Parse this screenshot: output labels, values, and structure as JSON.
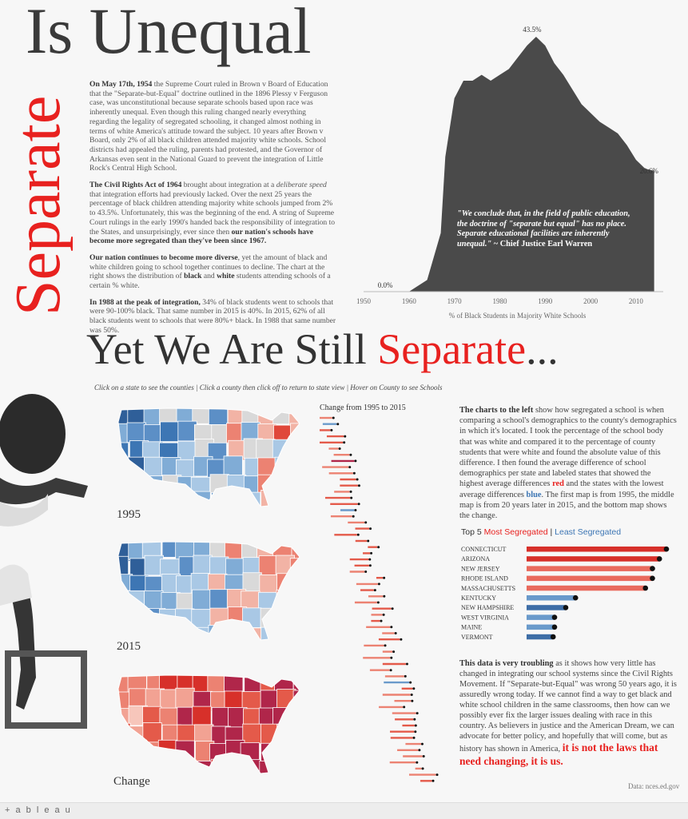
{
  "title_top": "Is Unequal",
  "title_vertical": "Separate",
  "intro": {
    "p1_lead": "On May 17th, 1954",
    "p1_body": " the Supreme Court ruled in Brown v Board of Education that the \"Separate-but-Equal\" doctrine outlined in the 1896 Plessy v Ferguson case, was unconstitutional because separate schools based upon race was inherently unequal.  Even though this ruling changed nearly everything regarding the legality of segregated schooling, it changed almost nothing in terms of white America's attitude toward the subject. 10 years after Brown v Board, only 2% of all black children attended majority white schools. School districts had appealed the ruling, parents had protested, and the Governor of Arkansas even sent in the National Guard to prevent the integration of Little Rock's Central High School.",
    "p2_lead": "The Civil Rights Act of 1964",
    "p2_mid1": " brought about integration at a ",
    "p2_italic": "deliberate speed",
    "p2_mid2": " that integration efforts had previously lacked. Over the next 25 years the percentage of black children attending majority white schools jumped from 2% to 43.5%. Unfortunately, this was the beginning of the end. A string of Supreme Court rulings in the early 1990's handed back the responsibility of integration to the States, and unsurprisingly, ever since then ",
    "p2_bold_end": "our nation's schools have become more segregated than they've been since 1967.",
    "p3_lead": "Our nation continues to become more diverse",
    "p3_mid1": ", yet the amount of black and white children going to school together continues to decline. The chart at the right shows the distribution of ",
    "p3_black": "black",
    "p3_and": " and ",
    "p3_white": "white",
    "p3_end": " students attending schools of a certain % white.",
    "p4_lead": "In 1988 at the peak of integration,",
    "p4_body": " 34% of black students went to schools that were 90-100% black. That same number in 2015 is 40%. In 2015, 62% of all black students went to schools that were 80%+ black. In 1988 that same number was 50%."
  },
  "quote": {
    "text": "\"We conclude that, in the field of public education, the doctrine of \"separate but equal\" has no place. Separate educational facilities are inherently unequal.\"",
    "attribution": " ~ Chief Justice Earl Warren"
  },
  "chart_data": [
    {
      "type": "area",
      "x": [
        1954,
        1960,
        1964,
        1967,
        1968,
        1970,
        1972,
        1974,
        1976,
        1978,
        1980,
        1982,
        1984,
        1986,
        1988,
        1990,
        1992,
        1994,
        1996,
        1998,
        2000,
        2002,
        2004,
        2006,
        2008,
        2010,
        2012,
        2014
      ],
      "values": [
        0,
        0,
        2,
        10,
        23,
        33,
        36,
        36,
        37,
        36,
        37,
        38,
        40,
        42,
        43.5,
        42,
        39,
        37,
        34.5,
        32,
        30.5,
        29,
        28,
        27,
        25,
        22.5,
        21,
        20.6
      ],
      "xticks": [
        1950,
        1960,
        1970,
        1980,
        1990,
        2000,
        2010
      ],
      "xlabel": "% of Black Students in Majority White Schools",
      "data_labels": {
        "start": "0.0%",
        "peak": "43.5%",
        "end": "20.6%"
      },
      "xlim": [
        1950,
        2016
      ],
      "ylim": [
        0,
        45
      ],
      "color": "#4a4a4a"
    },
    {
      "type": "bar",
      "title": "Top 5 Most Segregated | Least Segregated",
      "categories": [
        "CONNECTICUT",
        "ARIZONA",
        "NEW JERSEY",
        "RHODE ISLAND",
        "MASSACHUSETTS",
        "KENTUCKY",
        "NEW HAMPSHIRE",
        "WEST VIRGINIA",
        "MAINE",
        "VERMONT"
      ],
      "values": [
        1.0,
        0.95,
        0.9,
        0.9,
        0.85,
        0.35,
        0.28,
        0.2,
        0.2,
        0.19
      ],
      "colors": [
        "#d7302a",
        "#d7302a",
        "#e96a5d",
        "#e96a5d",
        "#e96a5d",
        "#6a9acb",
        "#3d6da6",
        "#6a9acb",
        "#6a9acb",
        "#3d6da6"
      ]
    },
    {
      "type": "scatter",
      "title": "Change from 1995 to 2015",
      "rows": 60
    }
  ],
  "headline": {
    "main": "Yet We Are Still ",
    "red": "Separate",
    "end": "..."
  },
  "instructions": "Click on a state to see the counties | Click a county then click off to return to state view | Hover on County to see Schools",
  "map_labels": {
    "m1": "1995",
    "m2": "2015",
    "m3": "Change"
  },
  "change_title": "Change from 1995 to 2015",
  "explain": {
    "lead": "The charts to the left",
    "body1": " show how segregated a school is when comparing a school's demographics to the county's demographics in which it's located. I took the percentage of the school body that was white and compared it to the percentage of county students that were white and found the absolute value of this difference. I then found the average difference of school demographics per state and labeled states that showed the highest average differences ",
    "red": "red",
    "body2": " and the states with the lowest average differences ",
    "blue": "blue",
    "body3": ". The first map is from 1995, the middle map is from 20 years later in 2015, and the bottom map shows the change."
  },
  "top5": {
    "prefix": "Top 5 ",
    "most": "Most Segregated",
    "sep": " | ",
    "least": "Least Segregated"
  },
  "conclusion": {
    "lead": "This data is very troubling",
    "body": " as it shows how very little has changed in integrating our school systems since the Civil Rights Movement. If \"Separate-but-Equal\" was wrong 50 years ago, it is assuredly wrong today. If we cannot find a way to get black and white school children in the same classrooms, then how can we possibly ever fix the larger issues dealing with race in this country. As believers in justice and the American Dream, we can advocate for better policy, and hopefully that will come, but as history has shown in America, ",
    "emphasis": "it is not the laws that need changing, it is us."
  },
  "source": "Data: nces.ed.gov",
  "footer": {
    "logo": "+ a b l e a u"
  },
  "colors": {
    "red": "#e8211f",
    "blue": "#3d76b4",
    "dark": "#4a4a4a"
  }
}
